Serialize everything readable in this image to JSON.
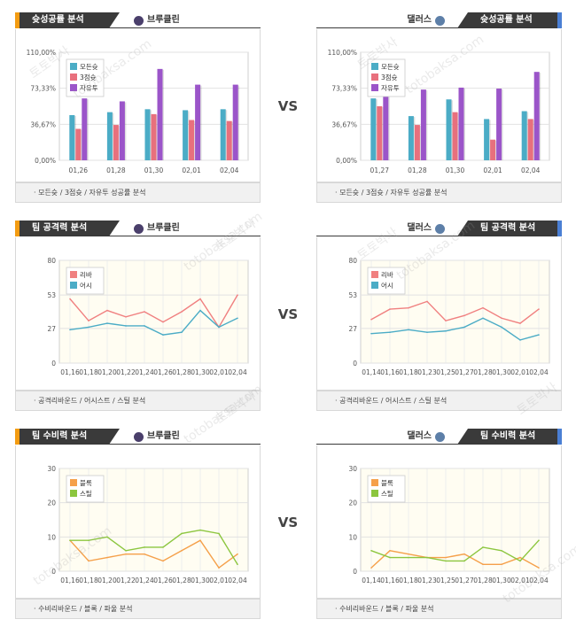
{
  "vs_label": "VS",
  "teams": {
    "brooklyn": "브루클린",
    "dallas": "댈러스"
  },
  "watermark": {
    "korean": "토토박사",
    "site": "totobaksa.com"
  },
  "sections": [
    {
      "title": "슛성공률 분석",
      "footer": "· 모든슛 / 3점슛 / 자유투 성공률 분석",
      "panels": [
        {
          "side": "left",
          "team": "브루클린",
          "chart_data": {
            "type": "bar",
            "ylim": [
              0,
              110
            ],
            "yticks": [
              "0,00%",
              "36,67%",
              "73,33%",
              "110,00%"
            ],
            "ytick_values": [
              0,
              36.67,
              73.33,
              110
            ],
            "categories": [
              "01,26",
              "01,28",
              "01,30",
              "02,01",
              "02,04"
            ],
            "series": [
              {
                "name": "모든슛",
                "color": "#4bacc6",
                "values": [
                  46,
                  49,
                  52,
                  51,
                  52
                ]
              },
              {
                "name": "3점슛",
                "color": "#e8707d",
                "values": [
                  32,
                  36,
                  47,
                  41,
                  40
                ]
              },
              {
                "name": "자유투",
                "color": "#9b55c9",
                "values": [
                  63,
                  60,
                  93,
                  77,
                  77
                ]
              }
            ],
            "legend": "top-left"
          }
        },
        {
          "side": "right",
          "team": "댈러스",
          "chart_data": {
            "type": "bar",
            "ylim": [
              0,
              110
            ],
            "yticks": [
              "0,00%",
              "36,67%",
              "73,33%",
              "110,00%"
            ],
            "ytick_values": [
              0,
              36.67,
              73.33,
              110
            ],
            "categories": [
              "01,27",
              "01,28",
              "01,30",
              "02,01",
              "02,04"
            ],
            "series": [
              {
                "name": "모든슛",
                "color": "#4bacc6",
                "values": [
                  63,
                  45,
                  62,
                  42,
                  50
                ]
              },
              {
                "name": "3점슛",
                "color": "#e8707d",
                "values": [
                  55,
                  36,
                  49,
                  21,
                  42
                ]
              },
              {
                "name": "자유투",
                "color": "#9b55c9",
                "values": [
                  76,
                  72,
                  74,
                  73,
                  90
                ]
              }
            ],
            "legend": "top-left"
          }
        }
      ]
    },
    {
      "title": "팀 공격력 분석",
      "footer": "· 공격리바운드 / 어시스트 / 스틸 분석",
      "panels": [
        {
          "side": "left",
          "team": "브루클린",
          "chart_data": {
            "type": "line",
            "ylim": [
              0,
              80
            ],
            "yticks": [
              "0",
              "27",
              "53",
              "80"
            ],
            "ytick_values": [
              0,
              27,
              53,
              80
            ],
            "categories": [
              "01,16",
              "01,18",
              "01,20",
              "01,22",
              "01,24",
              "01,26",
              "01,28",
              "01,30",
              "02,01",
              "02,04"
            ],
            "series": [
              {
                "name": "리바",
                "color": "#f08080",
                "values": [
                  50,
                  33,
                  41,
                  36,
                  40,
                  32,
                  40,
                  50,
                  28,
                  53
                ]
              },
              {
                "name": "어시",
                "color": "#4bacc6",
                "values": [
                  26,
                  28,
                  31,
                  29,
                  29,
                  22,
                  24,
                  41,
                  28,
                  35
                ]
              }
            ],
            "legend": "top-left"
          }
        },
        {
          "side": "right",
          "team": "댈러스",
          "chart_data": {
            "type": "line",
            "ylim": [
              0,
              80
            ],
            "yticks": [
              "0",
              "27",
              "53",
              "80"
            ],
            "ytick_values": [
              0,
              27,
              53,
              80
            ],
            "categories": [
              "01,14",
              "01,16",
              "01,18",
              "01,23",
              "01,25",
              "01,27",
              "01,28",
              "01,30",
              "02,01",
              "02,04"
            ],
            "series": [
              {
                "name": "리바",
                "color": "#f08080",
                "values": [
                  34,
                  42,
                  43,
                  48,
                  33,
                  37,
                  43,
                  35,
                  31,
                  42
                ]
              },
              {
                "name": "어시",
                "color": "#4bacc6",
                "values": [
                  23,
                  24,
                  26,
                  24,
                  25,
                  28,
                  35,
                  28,
                  18,
                  22
                ]
              }
            ],
            "legend": "top-left"
          }
        }
      ]
    },
    {
      "title": "팀 수비력 분석",
      "footer": "· 수비리바운드 / 블록 / 파울 분석",
      "panels": [
        {
          "side": "left",
          "team": "브루클린",
          "chart_data": {
            "type": "line",
            "ylim": [
              0,
              30
            ],
            "yticks": [
              "0",
              "10",
              "20",
              "30"
            ],
            "ytick_values": [
              0,
              10,
              20,
              30
            ],
            "categories": [
              "01,16",
              "01,18",
              "01,20",
              "01,22",
              "01,24",
              "01,26",
              "01,28",
              "01,30",
              "02,01",
              "02,04"
            ],
            "series": [
              {
                "name": "블록",
                "color": "#f5a04a",
                "values": [
                  9,
                  3,
                  4,
                  5,
                  5,
                  3,
                  6,
                  9,
                  1,
                  5
                ]
              },
              {
                "name": "스틸",
                "color": "#8cc63f",
                "values": [
                  9,
                  9,
                  10,
                  6,
                  7,
                  7,
                  11,
                  12,
                  11,
                  2
                ]
              }
            ],
            "legend": "top-left"
          }
        },
        {
          "side": "right",
          "team": "댈러스",
          "chart_data": {
            "type": "line",
            "ylim": [
              0,
              30
            ],
            "yticks": [
              "0",
              "10",
              "20",
              "30"
            ],
            "ytick_values": [
              0,
              10,
              20,
              30
            ],
            "categories": [
              "01,14",
              "01,16",
              "01,18",
              "01,23",
              "01,25",
              "01,27",
              "01,28",
              "01,30",
              "02,01",
              "02,04"
            ],
            "series": [
              {
                "name": "블록",
                "color": "#f5a04a",
                "values": [
                  1,
                  6,
                  5,
                  4,
                  4,
                  5,
                  2,
                  2,
                  4,
                  1
                ]
              },
              {
                "name": "스틸",
                "color": "#8cc63f",
                "values": [
                  6,
                  4,
                  4,
                  4,
                  3,
                  3,
                  7,
                  6,
                  3,
                  9
                ]
              }
            ],
            "legend": "top-left"
          }
        }
      ]
    }
  ]
}
